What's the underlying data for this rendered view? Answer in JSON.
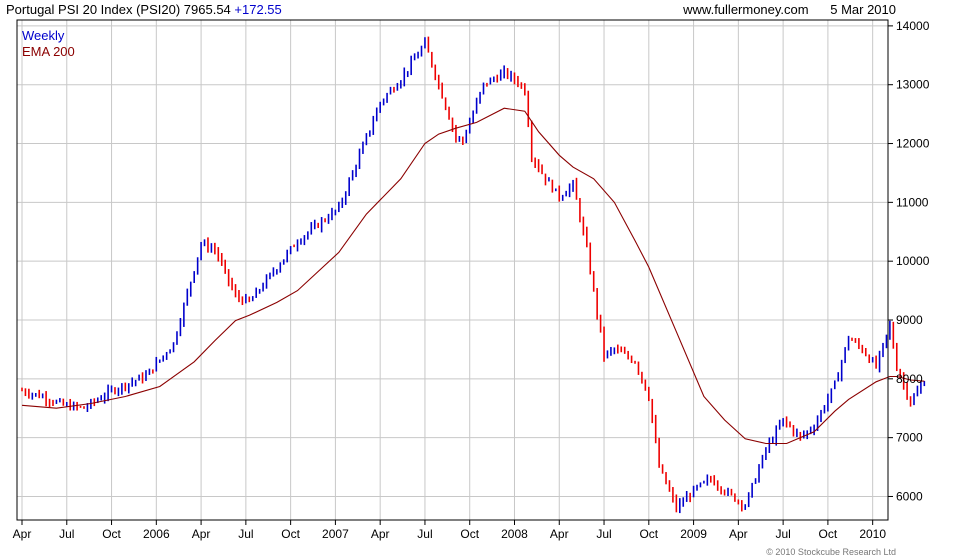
{
  "header": {
    "title": "Portugal PSI 20 Index (PSI20)",
    "price": "7965.54",
    "change": "+172.55",
    "site": "www.fullermoney.com",
    "date": "5 Mar 2010"
  },
  "copyright": "© 2010 Stockcube Research Ltd",
  "colors": {
    "up": "#0000cc",
    "down": "#ee0000",
    "ema": "#8b0000",
    "grid": "#c8c8c8",
    "frame": "#000000"
  },
  "chart_data": {
    "type": "line",
    "title": "Portugal PSI 20 Index (PSI20)",
    "ylim": [
      5600,
      14100
    ],
    "yticks": [
      6000,
      7000,
      8000,
      9000,
      10000,
      11000,
      12000,
      13000,
      14000
    ],
    "xlim": [
      0,
      250
    ],
    "x_ticks": [
      {
        "label": "Apr",
        "x": 0
      },
      {
        "label": "Jul",
        "x": 13
      },
      {
        "label": "Oct",
        "x": 26
      },
      {
        "label": "2006",
        "x": 39
      },
      {
        "label": "Apr",
        "x": 52
      },
      {
        "label": "Jul",
        "x": 65
      },
      {
        "label": "Oct",
        "x": 78
      },
      {
        "label": "2007",
        "x": 91
      },
      {
        "label": "Apr",
        "x": 104
      },
      {
        "label": "Jul",
        "x": 117
      },
      {
        "label": "Oct",
        "x": 130
      },
      {
        "label": "2008",
        "x": 143
      },
      {
        "label": "Apr",
        "x": 156
      },
      {
        "label": "Jul",
        "x": 169
      },
      {
        "label": "Oct",
        "x": 182
      },
      {
        "label": "2009",
        "x": 195
      },
      {
        "label": "Apr",
        "x": 208
      },
      {
        "label": "Jul",
        "x": 221
      },
      {
        "label": "Oct",
        "x": 234
      },
      {
        "label": "2010",
        "x": 247
      }
    ],
    "series": [
      {
        "name": "Weekly",
        "color": "#0000cc",
        "x": [
          0,
          6,
          12,
          18,
          26,
          36,
          44,
          52,
          56,
          62,
          66,
          74,
          80,
          92,
          104,
          110,
          117,
          121,
          126,
          128,
          134,
          140,
          144,
          146,
          148,
          152,
          156,
          160,
          164,
          169,
          172,
          178,
          182,
          185,
          190,
          195,
          200,
          205,
          210,
          216,
          221,
          226,
          230,
          236,
          240,
          244,
          248,
          252,
          254,
          258,
          262
        ],
        "y": [
          7800,
          7700,
          7550,
          7500,
          7800,
          8050,
          8600,
          10300,
          10200,
          9400,
          9300,
          9900,
          10350,
          10900,
          12700,
          13100,
          13700,
          13000,
          12100,
          12050,
          13000,
          13200,
          13050,
          12900,
          11800,
          11400,
          11100,
          11300,
          10200,
          8400,
          8500,
          8300,
          7700,
          6500,
          5800,
          6100,
          6300,
          6050,
          5850,
          6800,
          7300,
          7000,
          7200,
          7900,
          8700,
          8500,
          8200,
          8900,
          8200,
          7600,
          7965
        ]
      },
      {
        "name": "EMA 200",
        "color": "#8b0000",
        "x": [
          0,
          10,
          20,
          30,
          40,
          50,
          56,
          62,
          66,
          74,
          80,
          92,
          100,
          110,
          117,
          121,
          126,
          132,
          140,
          146,
          150,
          156,
          160,
          166,
          172,
          178,
          182,
          190,
          198,
          204,
          210,
          216,
          222,
          230,
          236,
          240,
          248,
          252,
          254,
          258,
          262
        ],
        "y": [
          7550,
          7500,
          7580,
          7700,
          7870,
          8290,
          8650,
          8990,
          9080,
          9300,
          9500,
          10150,
          10800,
          11400,
          12000,
          12160,
          12260,
          12360,
          12600,
          12550,
          12200,
          11800,
          11600,
          11400,
          11000,
          10350,
          9900,
          8800,
          7700,
          7300,
          6980,
          6900,
          6900,
          7100,
          7450,
          7650,
          7950,
          8040,
          8040,
          7980,
          7960
        ]
      }
    ]
  }
}
